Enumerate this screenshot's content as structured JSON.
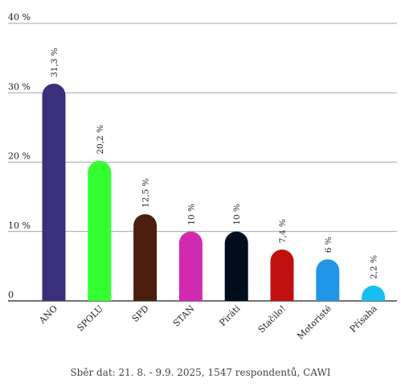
{
  "chart_data": {
    "type": "bar",
    "categories": [
      "ANO",
      "SPOLU",
      "SPD",
      "STAN",
      "Piráti",
      "Stačilo!",
      "Motoristé",
      "Přísaha"
    ],
    "values": [
      31.3,
      20.2,
      12.5,
      10,
      10,
      7.4,
      6,
      2.2
    ],
    "value_labels": [
      "31,3 %",
      "20,2 %",
      "12,5 %",
      "10 %",
      "10 %",
      "7,4 %",
      "6 %",
      "2,2 %"
    ],
    "colors": [
      "#3a2f7a",
      "#33ff33",
      "#4a1f0e",
      "#d12ab0",
      "#000d1a",
      "#c01010",
      "#2196e8",
      "#16bff0"
    ],
    "yticks": [
      0,
      10,
      20,
      30,
      40
    ],
    "ytick_labels": [
      "0",
      "10 %",
      "20 %",
      "30 %",
      "40 %"
    ],
    "ylim": [
      0,
      40
    ],
    "grid": true,
    "title": "",
    "xlabel": "",
    "ylabel": ""
  },
  "source_note": "Sběr dat: 21. 8. - 9.9. 2025, 1547 respondentů, CAWI"
}
